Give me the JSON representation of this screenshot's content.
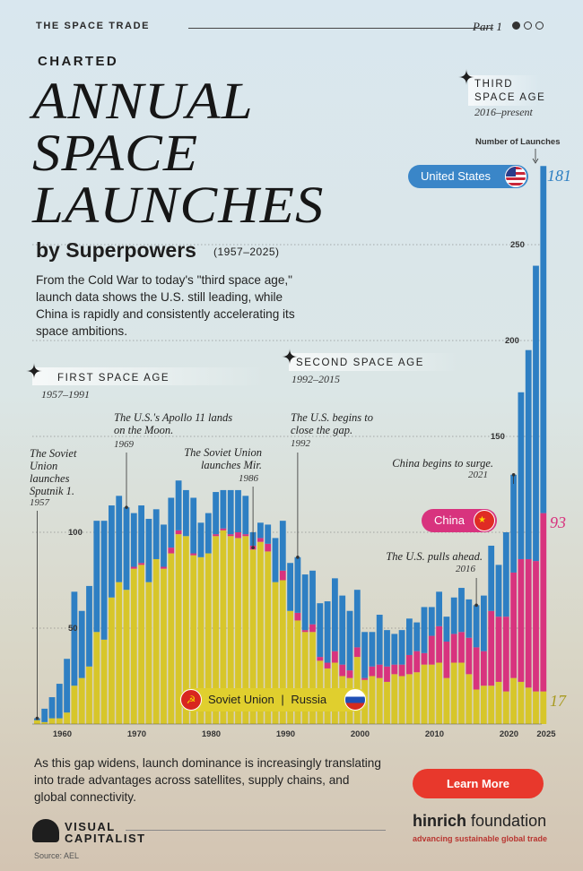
{
  "header": {
    "series": "THE SPACE TRADE",
    "part": "Part 1"
  },
  "kicker": "CHARTED",
  "title_lines": [
    "ANNUAL",
    "SPACE",
    "LAUNCHES"
  ],
  "subtitle": "by Superpowers",
  "subtitle_years": "(1957–2025)",
  "intro": "From the Cold War to today's \"third space age,\" launch data shows the U.S. still leading, while China is rapidly and consistently accelerating its space ambitions.",
  "eras": [
    {
      "label": "FIRST SPACE AGE",
      "years": "1957–1991"
    },
    {
      "label": "SECOND SPACE AGE",
      "years": "1992–2015"
    },
    {
      "label": "THIRD SPACE AGE",
      "years": "2016–present"
    }
  ],
  "annotations": [
    {
      "text": "The Soviet Union launches Sputnik 1.",
      "year": "1957"
    },
    {
      "text": "The U.S.'s Apollo 11 lands on the Moon.",
      "year": "1969"
    },
    {
      "text": "The Soviet Union launches Mir.",
      "year": "1986"
    },
    {
      "text": "The U.S. begins to close the gap.",
      "year": "1992"
    },
    {
      "text": "The U.S. pulls ahead.",
      "year": "2016"
    },
    {
      "text": "China begins to surge.",
      "year": "2021"
    }
  ],
  "legend": {
    "us": "United States",
    "china": "China",
    "soviet": "Soviet Union",
    "divider": "|",
    "russia": "Russia"
  },
  "axis_caption": "Number of Launches",
  "end_values": {
    "us": "181",
    "china": "93",
    "russia": "17"
  },
  "colors": {
    "us": "#2e7fc3",
    "china": "#d8337e",
    "soviet": "#d7c62a",
    "accent": "#e8382c"
  },
  "chart_data": {
    "type": "bar",
    "stacked": true,
    "x": [
      1957,
      1958,
      1959,
      1960,
      1961,
      1962,
      1963,
      1964,
      1965,
      1966,
      1967,
      1968,
      1969,
      1970,
      1971,
      1972,
      1973,
      1974,
      1975,
      1976,
      1977,
      1978,
      1979,
      1980,
      1981,
      1982,
      1983,
      1984,
      1985,
      1986,
      1987,
      1988,
      1989,
      1990,
      1991,
      1992,
      1993,
      1994,
      1995,
      1996,
      1997,
      1998,
      1999,
      2000,
      2001,
      2002,
      2003,
      2004,
      2005,
      2006,
      2007,
      2008,
      2009,
      2010,
      2011,
      2012,
      2013,
      2014,
      2015,
      2016,
      2017,
      2018,
      2019,
      2020,
      2021,
      2022,
      2023,
      2024,
      2025
    ],
    "series": [
      {
        "name": "Soviet Union | Russia",
        "values": [
          2,
          1,
          3,
          3,
          6,
          20,
          24,
          30,
          48,
          44,
          66,
          74,
          70,
          81,
          83,
          74,
          86,
          81,
          89,
          99,
          98,
          88,
          87,
          89,
          98,
          101,
          98,
          97,
          98,
          91,
          95,
          90,
          74,
          75,
          59,
          54,
          48,
          48,
          33,
          29,
          32,
          25,
          24,
          35,
          23,
          25,
          24,
          22,
          26,
          25,
          26,
          27,
          31,
          31,
          32,
          24,
          32,
          32,
          26,
          18,
          20,
          20,
          22,
          17,
          24,
          22,
          19,
          17,
          17
        ]
      },
      {
        "name": "China",
        "values": [
          0,
          0,
          0,
          0,
          0,
          0,
          0,
          0,
          0,
          0,
          0,
          0,
          0,
          1,
          1,
          0,
          0,
          1,
          3,
          2,
          0,
          1,
          0,
          0,
          1,
          1,
          1,
          3,
          1,
          2,
          2,
          4,
          0,
          5,
          0,
          4,
          1,
          4,
          2,
          3,
          6,
          6,
          4,
          5,
          1,
          5,
          7,
          8,
          5,
          6,
          10,
          11,
          6,
          15,
          19,
          19,
          15,
          16,
          19,
          22,
          18,
          39,
          34,
          39,
          55,
          64,
          67,
          68,
          93
        ]
      },
      {
        "name": "United States",
        "values": [
          1,
          7,
          11,
          18,
          28,
          49,
          35,
          42,
          58,
          62,
          48,
          45,
          43,
          28,
          30,
          33,
          26,
          22,
          26,
          26,
          24,
          29,
          18,
          21,
          22,
          20,
          23,
          22,
          20,
          7,
          8,
          10,
          23,
          26,
          25,
          29,
          29,
          28,
          28,
          32,
          38,
          36,
          31,
          30,
          24,
          18,
          26,
          19,
          16,
          18,
          19,
          15,
          24,
          15,
          18,
          13,
          19,
          23,
          20,
          22,
          29,
          34,
          27,
          44,
          51,
          87,
          109,
          154,
          181
        ]
      }
    ],
    "y_ticks": [
      50,
      100,
      150,
      200,
      250
    ],
    "x_ticks": [
      1960,
      1970,
      1980,
      1990,
      2000,
      2010,
      2020,
      2025
    ],
    "ylim": [
      0,
      290
    ]
  }
}
